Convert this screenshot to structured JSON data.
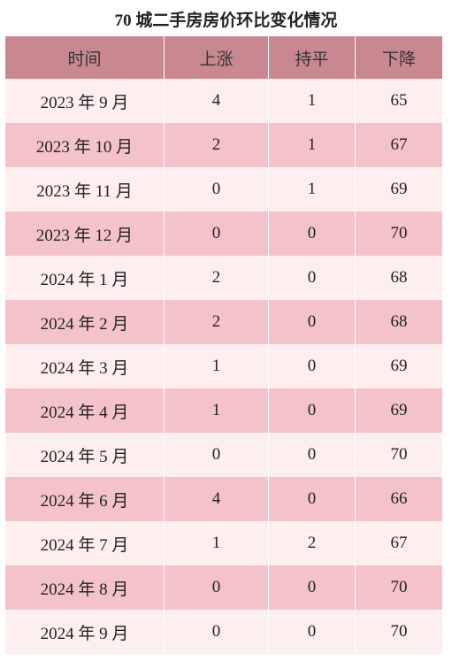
{
  "title": "70 城二手房房价环比变化情况",
  "table": {
    "header": [
      "时间",
      "上涨",
      "持平",
      "下降"
    ],
    "rows": [
      [
        "2023 年 9 月",
        4,
        1,
        65
      ],
      [
        "2023 年 10 月",
        2,
        1,
        67
      ],
      [
        "2023 年 11 月",
        0,
        1,
        69
      ],
      [
        "2023 年 12 月",
        0,
        0,
        70
      ],
      [
        "2024 年 1 月",
        2,
        0,
        68
      ],
      [
        "2024 年 2 月",
        2,
        0,
        68
      ],
      [
        "2024 年 3 月",
        1,
        0,
        69
      ],
      [
        "2024 年 4 月",
        1,
        0,
        69
      ],
      [
        "2024 年 5 月",
        0,
        0,
        70
      ],
      [
        "2024 年 6 月",
        4,
        0,
        66
      ],
      [
        "2024 年 7 月",
        1,
        2,
        67
      ],
      [
        "2024 年 8 月",
        0,
        0,
        70
      ],
      [
        "2024 年 9 月",
        0,
        0,
        70
      ]
    ]
  }
}
